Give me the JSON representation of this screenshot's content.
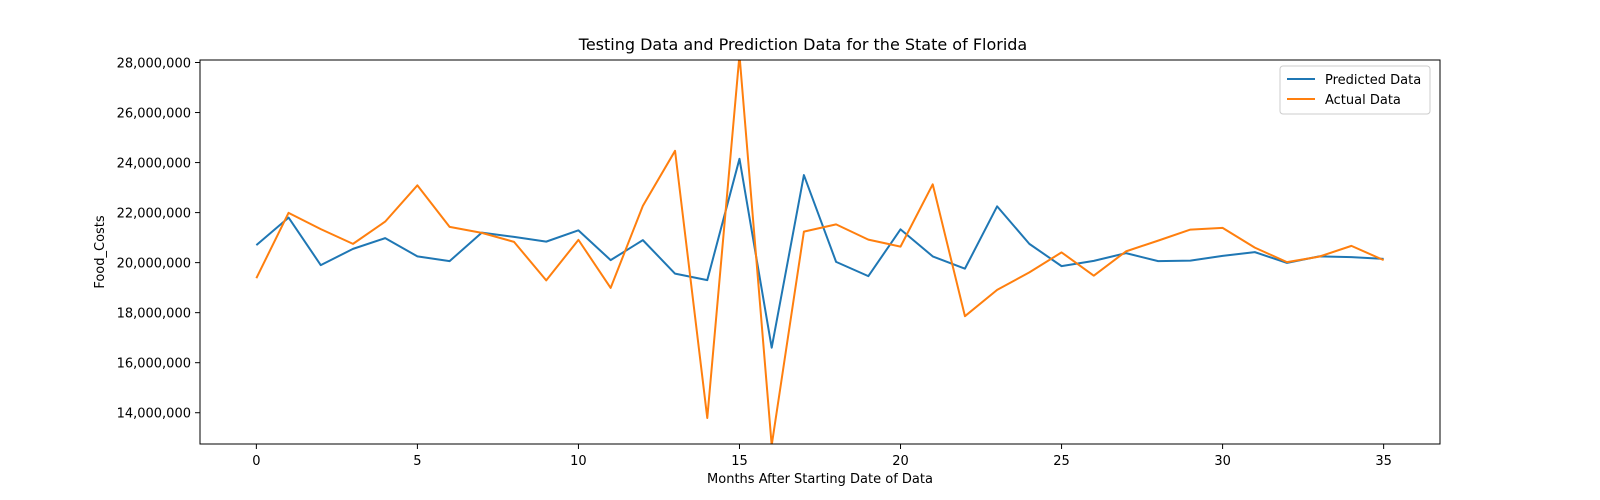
{
  "chart_data": {
    "type": "line",
    "title": "Testing Data and Prediction Data for the State of Florida",
    "xlabel": "Months After Starting Date of Data",
    "ylabel": "Food_Costs",
    "xlim": [
      -1.75,
      36.75
    ],
    "ylim": [
      12750000,
      28100000
    ],
    "xticks": [
      0,
      5,
      10,
      15,
      20,
      25,
      30,
      35
    ],
    "yticks": [
      14000000,
      16000000,
      18000000,
      20000000,
      22000000,
      24000000,
      26000000,
      28000000
    ],
    "ytick_labels": [
      "14,000,000",
      "16,000,000",
      "18,000,000",
      "20,000,000",
      "22,000,000",
      "24,000,000",
      "26,000,000",
      "28,000,000"
    ],
    "grid": false,
    "legend_position": "top-right",
    "x": [
      0,
      1,
      2,
      3,
      4,
      5,
      6,
      7,
      8,
      9,
      10,
      11,
      12,
      13,
      14,
      15,
      16,
      17,
      18,
      19,
      20,
      21,
      22,
      23,
      24,
      25,
      26,
      27,
      28,
      29,
      30,
      31,
      32,
      33,
      34,
      35
    ],
    "series": [
      {
        "name": "Predicted Data",
        "color": "#1f77b4",
        "values": [
          20700000,
          21800000,
          19900000,
          20550000,
          20980000,
          20250000,
          20060000,
          21200000,
          21030000,
          20840000,
          21290000,
          20100000,
          20900000,
          19560000,
          19300000,
          24150000,
          16600000,
          23500000,
          20030000,
          19460000,
          21330000,
          20250000,
          19760000,
          22250000,
          20750000,
          19860000,
          20070000,
          20380000,
          20060000,
          20080000,
          20270000,
          20420000,
          19990000,
          20250000,
          20220000,
          20150000
        ]
      },
      {
        "name": "Actual Data",
        "color": "#ff7f0e",
        "values": [
          19380000,
          21990000,
          21340000,
          20750000,
          21640000,
          23090000,
          21430000,
          21190000,
          20830000,
          19290000,
          20910000,
          18990000,
          22270000,
          24470000,
          13790000,
          28300000,
          12700000,
          21240000,
          21530000,
          20920000,
          20640000,
          23130000,
          17860000,
          18910000,
          19610000,
          20410000,
          19480000,
          20450000,
          20880000,
          21320000,
          21390000,
          20600000,
          20020000,
          20240000,
          20670000,
          20100000
        ]
      }
    ]
  }
}
